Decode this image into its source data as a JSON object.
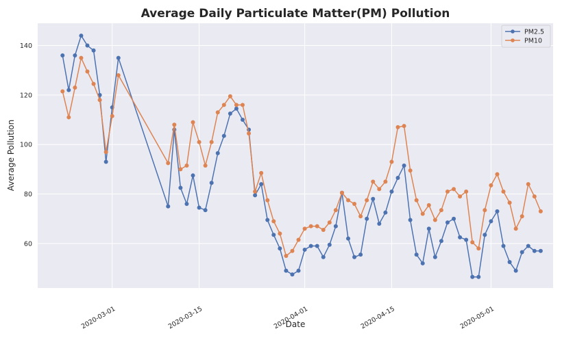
{
  "chart_data": {
    "type": "line",
    "title": "Average Daily Particulate Matter(PM) Pollution",
    "xlabel": "Date",
    "ylabel": "Average Pollution",
    "x_ticks": [
      "2020-03-01",
      "2020-03-15",
      "2020-04-01",
      "2020-04-15",
      "2020-05-01"
    ],
    "y_ticks": [
      60,
      80,
      100,
      120,
      140
    ],
    "xlim": [
      "2020-02-18",
      "2020-05-11"
    ],
    "ylim": [
      42,
      149
    ],
    "grid": true,
    "legend_position": "top-right",
    "series": [
      {
        "name": "PM2.5",
        "color": "#4c72b0",
        "points": [
          [
            "2020-02-22",
            136
          ],
          [
            "2020-02-23",
            122
          ],
          [
            "2020-02-24",
            136
          ],
          [
            "2020-02-25",
            144
          ],
          [
            "2020-02-26",
            140
          ],
          [
            "2020-02-27",
            138
          ],
          [
            "2020-02-28",
            120
          ],
          [
            "2020-02-29",
            93
          ],
          [
            "2020-03-01",
            115
          ],
          [
            "2020-03-02",
            135
          ],
          [
            "2020-03-10",
            75
          ],
          [
            "2020-03-11",
            106
          ],
          [
            "2020-03-12",
            82.5
          ],
          [
            "2020-03-13",
            76
          ],
          [
            "2020-03-14",
            87.5
          ],
          [
            "2020-03-15",
            74.5
          ],
          [
            "2020-03-16",
            73.5
          ],
          [
            "2020-03-17",
            84.5
          ],
          [
            "2020-03-18",
            96.5
          ],
          [
            "2020-03-19",
            103.5
          ],
          [
            "2020-03-20",
            112.5
          ],
          [
            "2020-03-21",
            114.5
          ],
          [
            "2020-03-22",
            110
          ],
          [
            "2020-03-23",
            106
          ],
          [
            "2020-03-24",
            79.5
          ],
          [
            "2020-03-25",
            84
          ],
          [
            "2020-03-26",
            69.5
          ],
          [
            "2020-03-27",
            63.5
          ],
          [
            "2020-03-28",
            58
          ],
          [
            "2020-03-29",
            49
          ],
          [
            "2020-03-30",
            47.5
          ],
          [
            "2020-03-31",
            49
          ],
          [
            "2020-04-01",
            57.5
          ],
          [
            "2020-04-02",
            59
          ],
          [
            "2020-04-03",
            59
          ],
          [
            "2020-04-04",
            54.5
          ],
          [
            "2020-04-05",
            59.5
          ],
          [
            "2020-04-06",
            67
          ],
          [
            "2020-04-07",
            80.5
          ],
          [
            "2020-04-08",
            62
          ],
          [
            "2020-04-09",
            54.5
          ],
          [
            "2020-04-10",
            55.5
          ],
          [
            "2020-04-11",
            70
          ],
          [
            "2020-04-12",
            78
          ],
          [
            "2020-04-13",
            68
          ],
          [
            "2020-04-14",
            72.5
          ],
          [
            "2020-04-15",
            81
          ],
          [
            "2020-04-16",
            86.5
          ],
          [
            "2020-04-17",
            91.5
          ],
          [
            "2020-04-18",
            69.5
          ],
          [
            "2020-04-19",
            55.5
          ],
          [
            "2020-04-20",
            52
          ],
          [
            "2020-04-21",
            66
          ],
          [
            "2020-04-22",
            54.5
          ],
          [
            "2020-04-23",
            61
          ],
          [
            "2020-04-24",
            68.5
          ],
          [
            "2020-04-25",
            70
          ],
          [
            "2020-04-26",
            62.5
          ],
          [
            "2020-04-27",
            61.5
          ],
          [
            "2020-04-28",
            46.5
          ],
          [
            "2020-04-29",
            46.5
          ],
          [
            "2020-04-30",
            63.5
          ],
          [
            "2020-05-01",
            69
          ],
          [
            "2020-05-02",
            73
          ],
          [
            "2020-05-03",
            59
          ],
          [
            "2020-05-04",
            52.5
          ],
          [
            "2020-05-05",
            49
          ],
          [
            "2020-05-06",
            56.5
          ],
          [
            "2020-05-07",
            59
          ],
          [
            "2020-05-08",
            57
          ],
          [
            "2020-05-09",
            57
          ]
        ]
      },
      {
        "name": "PM10",
        "color": "#dd8452",
        "points": [
          [
            "2020-02-22",
            121.5
          ],
          [
            "2020-02-23",
            111
          ],
          [
            "2020-02-24",
            123
          ],
          [
            "2020-02-25",
            135
          ],
          [
            "2020-02-26",
            129.5
          ],
          [
            "2020-02-27",
            124.5
          ],
          [
            "2020-02-28",
            118
          ],
          [
            "2020-02-29",
            97
          ],
          [
            "2020-03-01",
            111.5
          ],
          [
            "2020-03-02",
            128
          ],
          [
            "2020-03-10",
            92.5
          ],
          [
            "2020-03-11",
            108
          ],
          [
            "2020-03-12",
            90
          ],
          [
            "2020-03-13",
            91.5
          ],
          [
            "2020-03-14",
            109
          ],
          [
            "2020-03-15",
            101
          ],
          [
            "2020-03-16",
            91.5
          ],
          [
            "2020-03-17",
            101
          ],
          [
            "2020-03-18",
            113
          ],
          [
            "2020-03-19",
            116
          ],
          [
            "2020-03-20",
            119.5
          ],
          [
            "2020-03-21",
            116
          ],
          [
            "2020-03-22",
            116
          ],
          [
            "2020-03-23",
            104.5
          ],
          [
            "2020-03-24",
            81
          ],
          [
            "2020-03-25",
            88.5
          ],
          [
            "2020-03-26",
            77.5
          ],
          [
            "2020-03-27",
            69
          ],
          [
            "2020-03-28",
            64
          ],
          [
            "2020-03-29",
            55
          ],
          [
            "2020-03-30",
            57
          ],
          [
            "2020-03-31",
            61.5
          ],
          [
            "2020-04-01",
            66
          ],
          [
            "2020-04-02",
            67
          ],
          [
            "2020-04-03",
            67
          ],
          [
            "2020-04-04",
            65.5
          ],
          [
            "2020-04-05",
            68.5
          ],
          [
            "2020-04-06",
            73.5
          ],
          [
            "2020-04-07",
            80.5
          ],
          [
            "2020-04-08",
            77.5
          ],
          [
            "2020-04-09",
            76
          ],
          [
            "2020-04-10",
            71
          ],
          [
            "2020-04-11",
            77.5
          ],
          [
            "2020-04-12",
            85
          ],
          [
            "2020-04-13",
            82
          ],
          [
            "2020-04-14",
            85
          ],
          [
            "2020-04-15",
            93
          ],
          [
            "2020-04-16",
            107
          ],
          [
            "2020-04-17",
            107.5
          ],
          [
            "2020-04-18",
            89.5
          ],
          [
            "2020-04-19",
            77.5
          ],
          [
            "2020-04-20",
            72
          ],
          [
            "2020-04-21",
            75.5
          ],
          [
            "2020-04-22",
            69.5
          ],
          [
            "2020-04-23",
            73.5
          ],
          [
            "2020-04-24",
            81
          ],
          [
            "2020-04-25",
            82
          ],
          [
            "2020-04-26",
            79
          ],
          [
            "2020-04-27",
            81
          ],
          [
            "2020-04-28",
            60.5
          ],
          [
            "2020-04-29",
            58
          ],
          [
            "2020-04-30",
            73.5
          ],
          [
            "2020-05-01",
            83.5
          ],
          [
            "2020-05-02",
            88
          ],
          [
            "2020-05-03",
            81
          ],
          [
            "2020-05-04",
            76.5
          ],
          [
            "2020-05-05",
            66
          ],
          [
            "2020-05-06",
            71
          ],
          [
            "2020-05-07",
            84
          ],
          [
            "2020-05-08",
            79
          ],
          [
            "2020-05-09",
            73
          ]
        ]
      }
    ]
  }
}
